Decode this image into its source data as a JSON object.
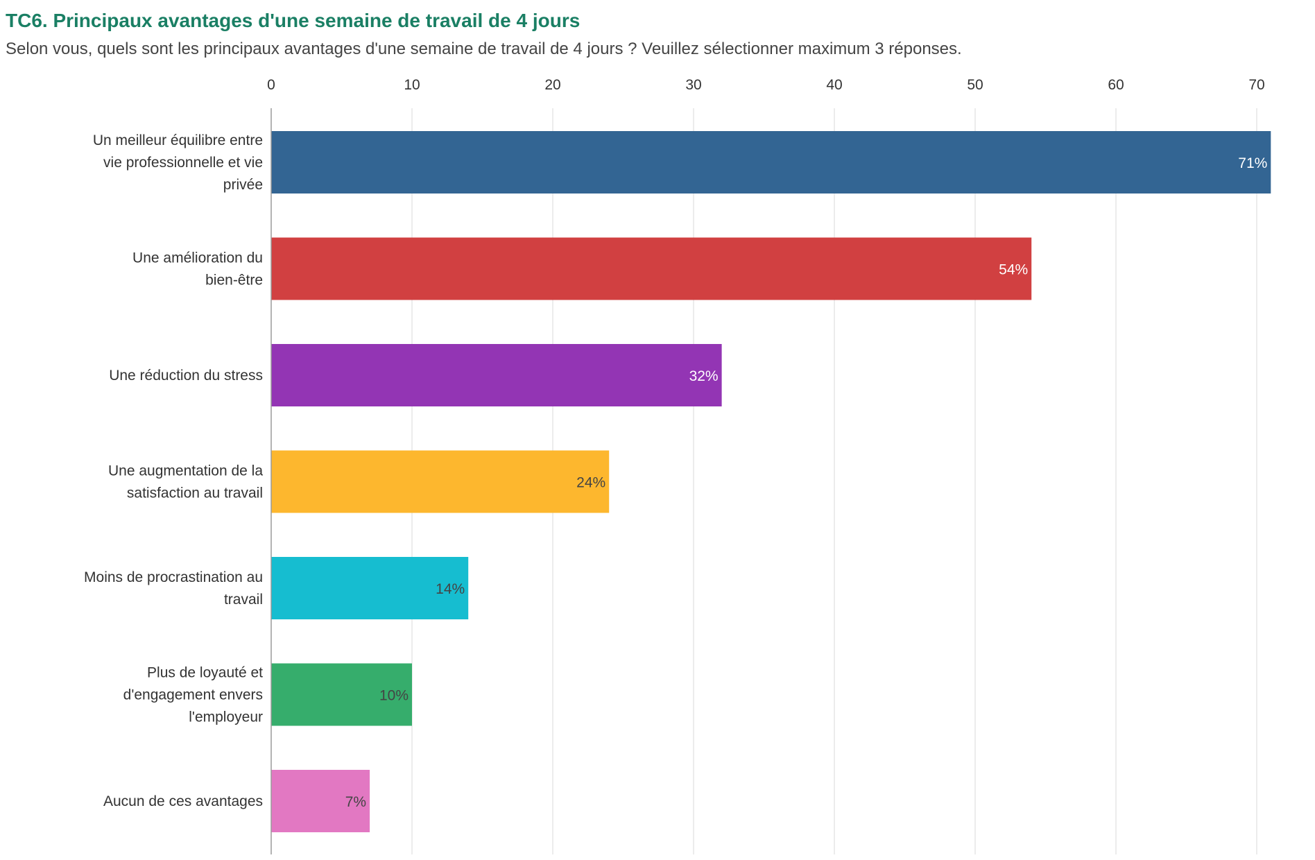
{
  "header": {
    "title": "TC6. Principaux avantages d'une semaine de travail de 4 jours",
    "subtitle": "Selon vous, quels sont les principaux avantages d'une semaine de travail de 4 jours ? Veuillez sélectionner maximum 3 réponses."
  },
  "chart_data": {
    "type": "bar",
    "orientation": "horizontal",
    "title": "TC6. Principaux avantages d'une semaine de travail de 4 jours",
    "subtitle": "Selon vous, quels sont les principaux avantages d'une semaine de travail de 4 jours ? Veuillez sélectionner maximum 3 réponses.",
    "categories": [
      [
        "Un meilleur équilibre entre",
        "vie professionnelle et vie",
        "privée"
      ],
      [
        "Une amélioration du",
        "bien-être"
      ],
      [
        "Une réduction du stress"
      ],
      [
        "Une augmentation de la",
        "satisfaction au travail"
      ],
      [
        "Moins de procrastination au",
        "travail"
      ],
      [
        "Plus de loyauté et",
        "d'engagement envers",
        "l'employeur"
      ],
      [
        "Aucun de ces avantages"
      ]
    ],
    "values": [
      71,
      54,
      32,
      24,
      14,
      10,
      7
    ],
    "value_labels": [
      "71%",
      "54%",
      "32%",
      "24%",
      "14%",
      "10%",
      "7%"
    ],
    "colors": [
      "#336593",
      "#d14041",
      "#9335b4",
      "#fdb72e",
      "#16bdd0",
      "#36ad6c",
      "#e278c2"
    ],
    "label_colors": [
      "#ffffff",
      "#ffffff",
      "#ffffff",
      "#444444",
      "#444444",
      "#444444",
      "#444444"
    ],
    "x_ticks": [
      "0",
      "10",
      "20",
      "30",
      "40",
      "50",
      "60",
      "70"
    ],
    "xlim": [
      0,
      71
    ],
    "x_axis_position": "top",
    "grid": true,
    "xlabel": "",
    "ylabel": ""
  }
}
